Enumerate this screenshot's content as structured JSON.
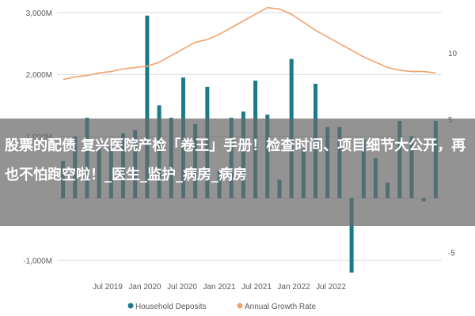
{
  "overlay": {
    "headline": "股票的配债 复兴医院产检「卷王」手册！检查时间、项目细节大公开，再也不怕跑空啦！_医生_监护_病房_病房"
  },
  "chart_data": {
    "type": "bar+line",
    "x_ticks": [
      "Jul 2019",
      "Jan 2020",
      "Jul 2020",
      "Jan 2021",
      "Jul 2021",
      "Jan 2022",
      "Jul 2022"
    ],
    "y_left": {
      "ticks": [
        "-1,000M",
        "1,000M",
        "2,000M",
        "3,000M"
      ],
      "range": [
        -1200,
        3100
      ]
    },
    "y_right": {
      "ticks": [
        "-5",
        "5",
        "10"
      ],
      "range": [
        -6.5,
        13.5
      ]
    },
    "colors": {
      "bars": "#1a7a8c",
      "line": "#f2a36b",
      "grid": "#d9d9d9"
    },
    "series": [
      {
        "name": "Household Deposits",
        "axis": "left",
        "kind": "bar",
        "values": [
          600,
          1000,
          1300,
          800,
          850,
          1050,
          1100,
          2950,
          1500,
          1300,
          1950,
          1200,
          1800,
          450,
          1300,
          1400,
          1900,
          1350,
          300,
          2250,
          800,
          1850,
          1150,
          1150,
          -1200,
          950,
          650,
          250,
          1250,
          1000,
          -50,
          1250
        ]
      },
      {
        "name": "Annual Growth Rate",
        "axis": "right",
        "kind": "line",
        "values": [
          8.0,
          8.2,
          8.3,
          8.5,
          8.6,
          8.8,
          8.9,
          9.0,
          9.3,
          9.8,
          10.3,
          10.8,
          11.0,
          11.4,
          11.9,
          12.4,
          12.9,
          13.4,
          13.3,
          12.9,
          12.3,
          11.7,
          11.2,
          10.7,
          10.2,
          9.7,
          9.3,
          8.9,
          8.7,
          8.6,
          8.6,
          8.5
        ]
      }
    ],
    "legend_position": "bottom"
  }
}
